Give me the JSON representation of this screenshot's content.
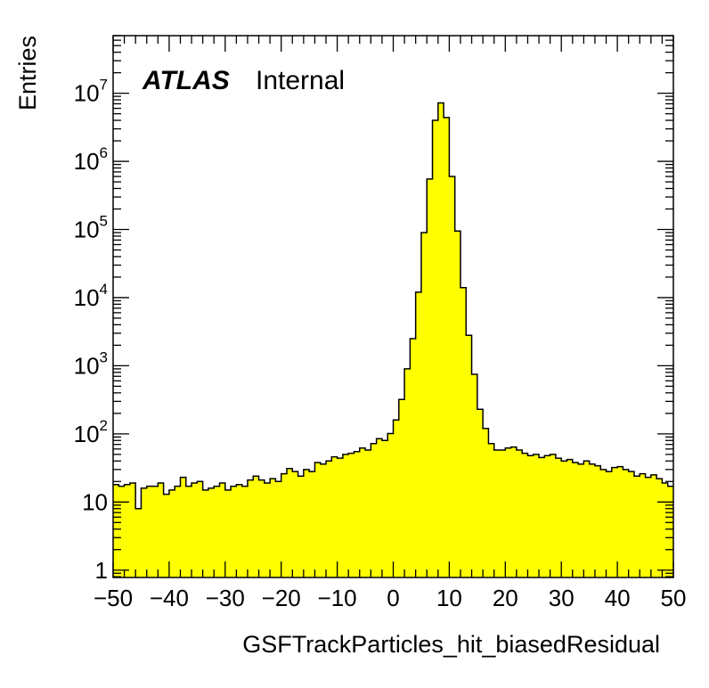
{
  "chart_data": {
    "type": "histogram",
    "xlabel": "GSFTrackParticles_hit_biasedResidual",
    "ylabel": "Entries",
    "xlim": [
      -50,
      50
    ],
    "ylim": [
      0.78,
      70000000
    ],
    "log_y": true,
    "grid": false,
    "fill_color": "#ffff00",
    "line_color": "#000000",
    "label": {
      "experiment": "ATLAS",
      "status": "Internal"
    },
    "x_ticks": [
      -50,
      -40,
      -30,
      -20,
      -10,
      0,
      10,
      20,
      30,
      40,
      50
    ],
    "x_tick_labels": [
      "−50",
      "−40",
      "−30",
      "−20",
      "−10",
      "0",
      "10",
      "20",
      "30",
      "40",
      "50"
    ],
    "y_ticks": [
      1,
      10,
      100,
      1000,
      10000,
      100000,
      1000000,
      10000000
    ],
    "y_tick_labels": [
      {
        "base": "1",
        "exp": ""
      },
      {
        "base": "10",
        "exp": ""
      },
      {
        "base": "10",
        "exp": "2"
      },
      {
        "base": "10",
        "exp": "3"
      },
      {
        "base": "10",
        "exp": "4"
      },
      {
        "base": "10",
        "exp": "5"
      },
      {
        "base": "10",
        "exp": "6"
      },
      {
        "base": "10",
        "exp": "7"
      }
    ],
    "bin_edges": {
      "start": -50,
      "width": 1,
      "count": 100
    },
    "values": [
      18,
      17,
      18,
      19,
      8,
      16,
      17,
      17,
      19,
      13,
      15,
      17,
      23,
      17,
      19,
      20,
      15,
      16,
      17,
      19,
      15,
      17,
      18,
      17,
      21,
      24,
      21,
      19,
      22,
      20,
      26,
      31,
      28,
      24,
      30,
      28,
      38,
      36,
      40,
      46,
      44,
      50,
      52,
      55,
      62,
      58,
      72,
      85,
      80,
      101,
      160,
      320,
      900,
      2500,
      12000,
      90000,
      550000,
      4000000,
      7200000,
      4400000,
      600000,
      95000,
      14000,
      2800,
      750,
      230,
      120,
      72,
      58,
      58,
      62,
      64,
      58,
      52,
      48,
      50,
      45,
      48,
      50,
      44,
      40,
      42,
      38,
      36,
      40,
      36,
      34,
      30,
      28,
      32,
      33,
      30,
      28,
      24,
      26,
      23,
      25,
      22,
      19,
      17
    ]
  }
}
